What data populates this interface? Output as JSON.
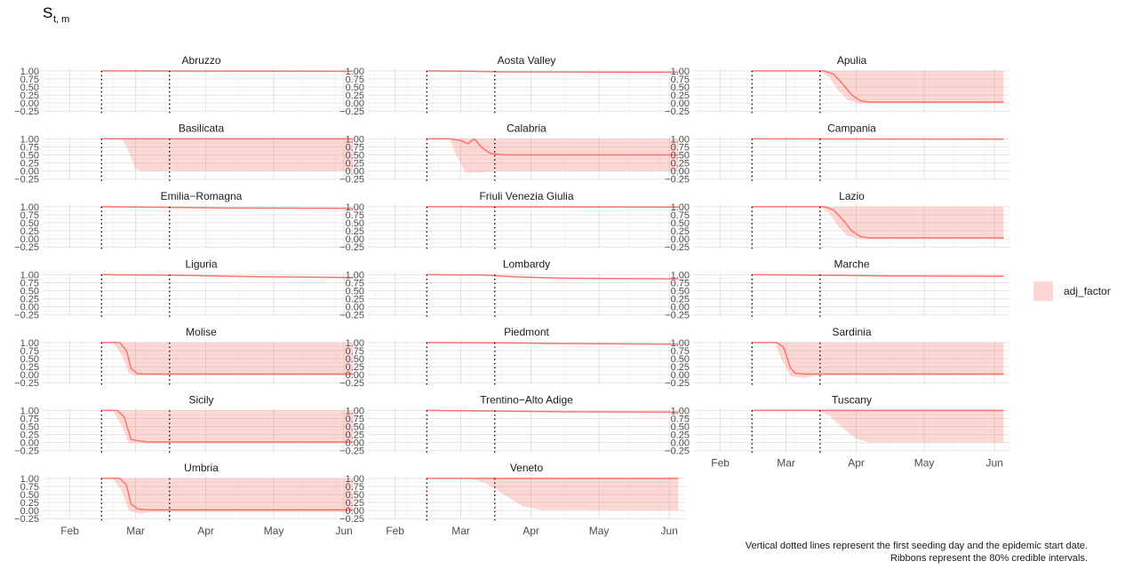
{
  "chart_data": {
    "type": "line",
    "ylabel_main": "S",
    "ylabel_sub": "t, m",
    "x_ticks": [
      "Feb",
      "Mar",
      "Apr",
      "May",
      "Jun"
    ],
    "y_ticks": [
      "1.00",
      "0.75",
      "0.50",
      "0.25",
      "0.00",
      "−0.25"
    ],
    "ylim": [
      -0.3,
      1.08
    ],
    "xlim": [
      "2020-01-20",
      "2020-06-08"
    ],
    "legend": {
      "label": "adj_factor",
      "color": "#f8766d",
      "placement": "right"
    },
    "caption": [
      "Vertical dotted lines represent the first seeding day and the epidemic start date.",
      "Ribbons represent the 80% credible intervals."
    ],
    "panels": [
      {
        "name": "Abruzzo",
        "seed": "2020-02-15",
        "start": "2020-03-16",
        "curve": [
          [
            "2020-02-15",
            1.0
          ],
          [
            "2020-06-05",
            0.99
          ]
        ],
        "ribbon": null
      },
      {
        "name": "Aosta Valley",
        "seed": "2020-02-15",
        "start": "2020-03-16",
        "curve": [
          [
            "2020-02-15",
            1.0
          ],
          [
            "2020-03-05",
            0.99
          ],
          [
            "2020-03-20",
            0.97
          ],
          [
            "2020-06-05",
            0.96
          ]
        ],
        "ribbon": null
      },
      {
        "name": "Apulia",
        "seed": "2020-02-15",
        "start": "2020-03-16",
        "curve": [
          [
            "2020-02-15",
            1.0
          ],
          [
            "2020-03-18",
            1.0
          ],
          [
            "2020-03-22",
            0.9
          ],
          [
            "2020-03-26",
            0.6
          ],
          [
            "2020-03-30",
            0.25
          ],
          [
            "2020-04-03",
            0.07
          ],
          [
            "2020-04-07",
            0.03
          ],
          [
            "2020-06-05",
            0.03
          ]
        ],
        "ribbon": {
          "upper": [
            [
              "2020-02-15",
              1.0
            ],
            [
              "2020-06-05",
              1.0
            ]
          ],
          "lower": [
            [
              "2020-02-15",
              1.0
            ],
            [
              "2020-03-16",
              1.0
            ],
            [
              "2020-03-20",
              0.8
            ],
            [
              "2020-03-24",
              0.4
            ],
            [
              "2020-03-28",
              0.1
            ],
            [
              "2020-04-02",
              0.0
            ],
            [
              "2020-06-05",
              0.0
            ]
          ]
        }
      },
      {
        "name": "Basilicata",
        "seed": "2020-02-15",
        "start": "2020-03-16",
        "curve": [
          [
            "2020-02-15",
            1.0
          ],
          [
            "2020-06-05",
            1.0
          ]
        ],
        "ribbon": {
          "upper": [
            [
              "2020-02-24",
              1.0
            ],
            [
              "2020-06-05",
              1.0
            ]
          ],
          "lower": [
            [
              "2020-02-24",
              1.0
            ],
            [
              "2020-02-27",
              0.6
            ],
            [
              "2020-03-01",
              0.05
            ],
            [
              "2020-03-04",
              0.0
            ],
            [
              "2020-06-05",
              0.0
            ]
          ]
        }
      },
      {
        "name": "Calabria",
        "seed": "2020-02-15",
        "start": "2020-03-16",
        "curve": [
          [
            "2020-02-15",
            1.0
          ],
          [
            "2020-02-25",
            1.0
          ],
          [
            "2020-03-01",
            0.95
          ],
          [
            "2020-03-04",
            0.85
          ],
          [
            "2020-03-07",
            1.0
          ],
          [
            "2020-03-10",
            0.75
          ],
          [
            "2020-03-14",
            0.55
          ],
          [
            "2020-03-20",
            0.5
          ],
          [
            "2020-06-05",
            0.5
          ]
        ],
        "ribbon": {
          "upper": [
            [
              "2020-02-25",
              1.0
            ],
            [
              "2020-06-05",
              1.0
            ]
          ],
          "lower": [
            [
              "2020-02-25",
              1.0
            ],
            [
              "2020-02-28",
              0.5
            ],
            [
              "2020-03-03",
              -0.05
            ],
            [
              "2020-03-10",
              -0.05
            ],
            [
              "2020-03-15",
              0.0
            ],
            [
              "2020-06-05",
              0.0
            ]
          ]
        }
      },
      {
        "name": "Campania",
        "seed": "2020-02-15",
        "start": "2020-03-16",
        "curve": [
          [
            "2020-02-15",
            1.0
          ],
          [
            "2020-06-05",
            0.99
          ]
        ],
        "ribbon": null
      },
      {
        "name": "Emilia−Romagna",
        "seed": "2020-02-15",
        "start": "2020-03-16",
        "curve": [
          [
            "2020-02-15",
            1.0
          ],
          [
            "2020-03-20",
            0.98
          ],
          [
            "2020-04-10",
            0.96
          ],
          [
            "2020-06-05",
            0.95
          ]
        ],
        "ribbon": null
      },
      {
        "name": "Friuli Venezia Giulia",
        "seed": "2020-02-15",
        "start": "2020-03-16",
        "curve": [
          [
            "2020-02-15",
            1.0
          ],
          [
            "2020-06-05",
            0.99
          ]
        ],
        "ribbon": null
      },
      {
        "name": "Lazio",
        "seed": "2020-02-15",
        "start": "2020-03-16",
        "curve": [
          [
            "2020-02-15",
            1.0
          ],
          [
            "2020-03-18",
            1.0
          ],
          [
            "2020-03-22",
            0.9
          ],
          [
            "2020-03-26",
            0.6
          ],
          [
            "2020-03-30",
            0.25
          ],
          [
            "2020-04-03",
            0.07
          ],
          [
            "2020-04-07",
            0.03
          ],
          [
            "2020-06-05",
            0.03
          ]
        ],
        "ribbon": {
          "upper": [
            [
              "2020-02-15",
              1.0
            ],
            [
              "2020-06-05",
              1.0
            ]
          ],
          "lower": [
            [
              "2020-02-15",
              1.0
            ],
            [
              "2020-03-16",
              1.0
            ],
            [
              "2020-03-20",
              0.8
            ],
            [
              "2020-03-24",
              0.4
            ],
            [
              "2020-03-28",
              0.1
            ],
            [
              "2020-04-02",
              0.0
            ],
            [
              "2020-06-05",
              0.0
            ]
          ]
        }
      },
      {
        "name": "Liguria",
        "seed": "2020-02-15",
        "start": "2020-03-16",
        "curve": [
          [
            "2020-02-15",
            1.0
          ],
          [
            "2020-03-20",
            0.98
          ],
          [
            "2020-04-20",
            0.94
          ],
          [
            "2020-06-05",
            0.91
          ]
        ],
        "ribbon": null
      },
      {
        "name": "Lombardy",
        "seed": "2020-02-15",
        "start": "2020-03-16",
        "curve": [
          [
            "2020-02-15",
            1.0
          ],
          [
            "2020-03-10",
            0.99
          ],
          [
            "2020-03-25",
            0.93
          ],
          [
            "2020-04-15",
            0.89
          ],
          [
            "2020-06-05",
            0.87
          ]
        ],
        "ribbon": null
      },
      {
        "name": "Marche",
        "seed": "2020-02-15",
        "start": "2020-03-16",
        "curve": [
          [
            "2020-02-15",
            1.0
          ],
          [
            "2020-03-20",
            0.98
          ],
          [
            "2020-04-15",
            0.96
          ],
          [
            "2020-06-05",
            0.95
          ]
        ],
        "ribbon": null
      },
      {
        "name": "Molise",
        "seed": "2020-02-15",
        "start": "2020-03-16",
        "curve": [
          [
            "2020-02-15",
            1.0
          ],
          [
            "2020-02-23",
            1.0
          ],
          [
            "2020-02-26",
            0.75
          ],
          [
            "2020-02-28",
            0.2
          ],
          [
            "2020-03-02",
            0.03
          ],
          [
            "2020-03-06",
            0.02
          ],
          [
            "2020-06-05",
            0.02
          ]
        ],
        "ribbon": {
          "upper": [
            [
              "2020-02-20",
              1.0
            ],
            [
              "2020-06-05",
              1.0
            ]
          ],
          "lower": [
            [
              "2020-02-20",
              1.0
            ],
            [
              "2020-02-24",
              0.6
            ],
            [
              "2020-02-27",
              0.05
            ],
            [
              "2020-03-01",
              -0.02
            ],
            [
              "2020-06-05",
              -0.02
            ]
          ]
        }
      },
      {
        "name": "Piedmont",
        "seed": "2020-02-15",
        "start": "2020-03-16",
        "curve": [
          [
            "2020-02-15",
            1.0
          ],
          [
            "2020-03-20",
            0.99
          ],
          [
            "2020-04-15",
            0.97
          ],
          [
            "2020-06-05",
            0.95
          ]
        ],
        "ribbon": null
      },
      {
        "name": "Sardinia",
        "seed": "2020-02-15",
        "start": "2020-03-16",
        "curve": [
          [
            "2020-02-15",
            1.0
          ],
          [
            "2020-02-26",
            1.0
          ],
          [
            "2020-02-29",
            0.85
          ],
          [
            "2020-03-03",
            0.2
          ],
          [
            "2020-03-05",
            0.05
          ],
          [
            "2020-03-09",
            0.02
          ],
          [
            "2020-06-05",
            0.02
          ]
        ],
        "ribbon": {
          "upper": [
            [
              "2020-02-25",
              1.0
            ],
            [
              "2020-06-05",
              1.0
            ]
          ],
          "lower": [
            [
              "2020-02-25",
              1.0
            ],
            [
              "2020-02-28",
              0.5
            ],
            [
              "2020-03-03",
              -0.05
            ],
            [
              "2020-03-10",
              -0.1
            ],
            [
              "2020-03-14",
              -0.02
            ],
            [
              "2020-06-05",
              -0.02
            ]
          ]
        }
      },
      {
        "name": "Sicily",
        "seed": "2020-02-15",
        "start": "2020-03-16",
        "curve": [
          [
            "2020-02-15",
            1.0
          ],
          [
            "2020-02-22",
            1.0
          ],
          [
            "2020-02-25",
            0.8
          ],
          [
            "2020-02-28",
            0.1
          ],
          [
            "2020-03-03",
            0.05
          ],
          [
            "2020-03-06",
            0.02
          ],
          [
            "2020-06-05",
            0.02
          ]
        ],
        "ribbon": {
          "upper": [
            [
              "2020-02-20",
              1.0
            ],
            [
              "2020-06-05",
              1.0
            ]
          ],
          "lower": [
            [
              "2020-02-20",
              1.0
            ],
            [
              "2020-02-24",
              0.5
            ],
            [
              "2020-02-27",
              -0.02
            ],
            [
              "2020-03-06",
              -0.02
            ],
            [
              "2020-06-05",
              -0.02
            ]
          ]
        }
      },
      {
        "name": "Trentino−Alto Adige",
        "seed": "2020-02-15",
        "start": "2020-03-16",
        "curve": [
          [
            "2020-02-15",
            1.0
          ],
          [
            "2020-03-20",
            0.98
          ],
          [
            "2020-04-15",
            0.96
          ],
          [
            "2020-06-05",
            0.95
          ]
        ],
        "ribbon": null
      },
      {
        "name": "Tuscany",
        "seed": "2020-02-15",
        "start": "2020-03-16",
        "curve": [
          [
            "2020-02-15",
            1.0
          ],
          [
            "2020-06-05",
            1.0
          ]
        ],
        "ribbon": {
          "upper": [
            [
              "2020-03-14",
              1.0
            ],
            [
              "2020-06-05",
              1.0
            ]
          ],
          "lower": [
            [
              "2020-03-14",
              1.0
            ],
            [
              "2020-03-20",
              0.85
            ],
            [
              "2020-03-26",
              0.45
            ],
            [
              "2020-04-01",
              0.12
            ],
            [
              "2020-04-07",
              0.0
            ],
            [
              "2020-06-05",
              0.0
            ]
          ]
        }
      },
      {
        "name": "Umbria",
        "seed": "2020-02-15",
        "start": "2020-03-16",
        "curve": [
          [
            "2020-02-15",
            1.0
          ],
          [
            "2020-02-23",
            1.0
          ],
          [
            "2020-02-26",
            0.8
          ],
          [
            "2020-02-28",
            0.2
          ],
          [
            "2020-03-02",
            0.05
          ],
          [
            "2020-03-06",
            0.02
          ],
          [
            "2020-06-05",
            0.02
          ]
        ],
        "ribbon": {
          "upper": [
            [
              "2020-02-20",
              1.0
            ],
            [
              "2020-06-05",
              1.0
            ]
          ],
          "lower": [
            [
              "2020-02-20",
              1.0
            ],
            [
              "2020-02-24",
              0.6
            ],
            [
              "2020-02-27",
              0.0
            ],
            [
              "2020-03-03",
              -0.1
            ],
            [
              "2020-03-08",
              -0.05
            ],
            [
              "2020-06-05",
              -0.05
            ]
          ]
        }
      },
      {
        "name": "Veneto",
        "seed": "2020-02-15",
        "start": "2020-03-16",
        "curve": [
          [
            "2020-02-15",
            1.0
          ],
          [
            "2020-06-05",
            1.0
          ]
        ],
        "ribbon": {
          "upper": [
            [
              "2020-03-05",
              1.0
            ],
            [
              "2020-06-05",
              1.0
            ]
          ],
          "lower": [
            [
              "2020-03-05",
              1.0
            ],
            [
              "2020-03-12",
              0.85
            ],
            [
              "2020-03-20",
              0.5
            ],
            [
              "2020-03-28",
              0.15
            ],
            [
              "2020-04-05",
              0.02
            ],
            [
              "2020-06-05",
              0.0
            ]
          ]
        }
      }
    ]
  }
}
